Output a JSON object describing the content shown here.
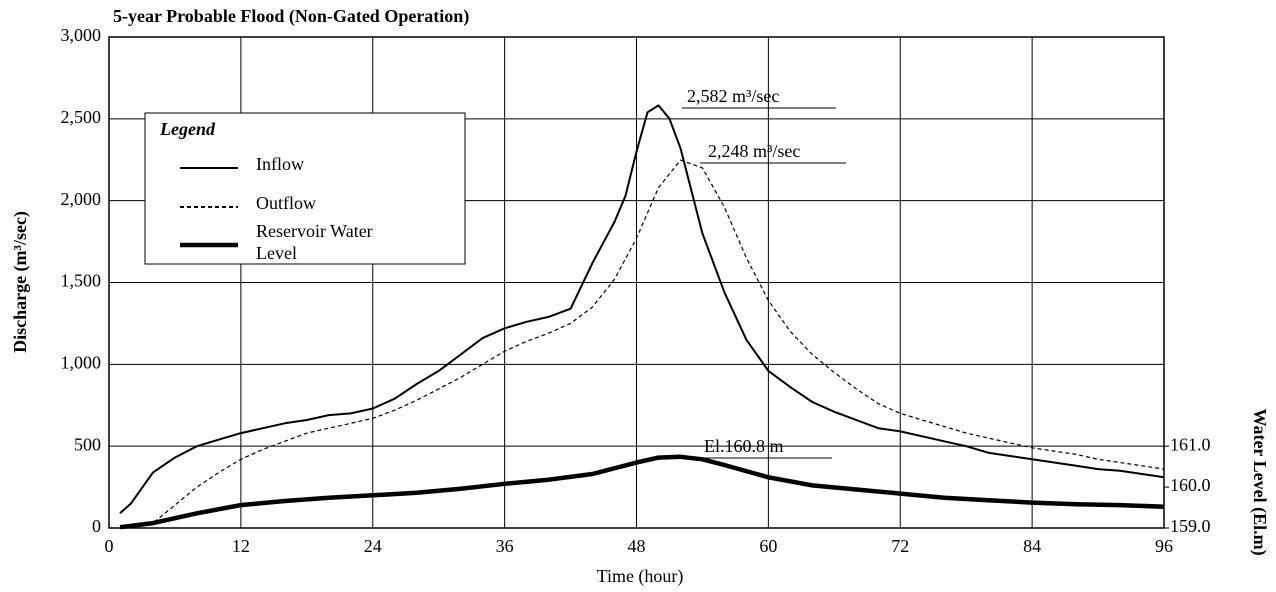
{
  "chart_data": {
    "type": "line",
    "title": "5-year Probable Flood (Non-Gated Operation)",
    "x_label": "Time (hour)",
    "y_label": "Discharge (m³/sec)",
    "y2_label": "Water Level (El.m)",
    "legend_title": "Legend",
    "legend": "upper left",
    "grid": true,
    "xlim": [
      0,
      96
    ],
    "xticks": [
      0,
      12,
      24,
      36,
      48,
      60,
      72,
      84,
      96
    ],
    "ylim": [
      0,
      3000
    ],
    "yticks": [
      0,
      {
        "value": 500,
        "label": "500"
      },
      {
        "value": 1000,
        "label": "1,000"
      },
      {
        "value": 1500,
        "label": "1,500"
      },
      {
        "value": 2000,
        "label": "2,000"
      },
      {
        "value": 2500,
        "label": "2,500"
      },
      {
        "value": 3000,
        "label": "3,000"
      }
    ],
    "y2lim": [
      159,
      171
    ],
    "y2ticks": [
      {
        "value": 159,
        "label": "159.0"
      },
      {
        "value": 160,
        "label": "160.0"
      },
      {
        "value": 161,
        "label": "161.0"
      }
    ],
    "series": [
      {
        "name": "Inflow",
        "color": "#000000",
        "style": "solid",
        "x": [
          1,
          2,
          4,
          6,
          8,
          10,
          12,
          14,
          16,
          18,
          20,
          22,
          24,
          26,
          28,
          30,
          32,
          34,
          36,
          38,
          40,
          42,
          44,
          46,
          47,
          48,
          49,
          50,
          51,
          52,
          54,
          56,
          58,
          60,
          62,
          64,
          66,
          68,
          70,
          72,
          74,
          76,
          78,
          80,
          82,
          84,
          86,
          88,
          90,
          92,
          94,
          96
        ],
        "values": [
          90,
          150,
          340,
          430,
          500,
          540,
          580,
          610,
          640,
          660,
          690,
          700,
          730,
          790,
          880,
          960,
          1060,
          1160,
          1220,
          1260,
          1290,
          1340,
          1620,
          1870,
          2030,
          2300,
          2540,
          2582,
          2500,
          2320,
          1800,
          1440,
          1150,
          960,
          860,
          770,
          710,
          660,
          610,
          590,
          560,
          530,
          500,
          460,
          440,
          420,
          400,
          380,
          360,
          350,
          330,
          310
        ]
      },
      {
        "name": "Outflow",
        "color": "#000000",
        "style": "dashed",
        "x": [
          1,
          4,
          6,
          8,
          10,
          12,
          14,
          16,
          18,
          20,
          22,
          24,
          26,
          28,
          30,
          32,
          34,
          36,
          38,
          40,
          42,
          44,
          46,
          48,
          50,
          52,
          54,
          56,
          58,
          60,
          62,
          64,
          66,
          68,
          70,
          72,
          74,
          76,
          78,
          80,
          82,
          84,
          86,
          88,
          90,
          92,
          94,
          96
        ],
        "values": [
          0,
          30,
          140,
          250,
          340,
          420,
          480,
          530,
          580,
          610,
          640,
          670,
          720,
          780,
          850,
          920,
          1000,
          1080,
          1140,
          1190,
          1250,
          1350,
          1520,
          1770,
          2080,
          2248,
          2200,
          1960,
          1650,
          1390,
          1200,
          1060,
          950,
          850,
          760,
          700,
          660,
          620,
          580,
          550,
          520,
          490,
          470,
          450,
          420,
          400,
          380,
          360
        ]
      },
      {
        "name": "Reservoir Water Level",
        "color": "#000000",
        "style": "thick",
        "axis": "y2",
        "x": [
          1,
          4,
          8,
          12,
          16,
          20,
          24,
          28,
          32,
          36,
          40,
          44,
          48,
          50,
          52,
          54,
          56,
          60,
          64,
          68,
          72,
          76,
          80,
          84,
          88,
          92,
          96
        ],
        "values": [
          159.02,
          159.12,
          159.36,
          159.56,
          159.66,
          159.74,
          159.8,
          159.86,
          159.96,
          160.08,
          160.18,
          160.32,
          160.6,
          160.72,
          160.74,
          160.68,
          160.54,
          160.24,
          160.04,
          159.94,
          159.84,
          159.74,
          159.68,
          159.62,
          159.58,
          159.56,
          159.52
        ]
      }
    ],
    "annotations": [
      "2,582 m³/sec",
      "2,248 m³/sec",
      "El.160.8 m"
    ]
  }
}
